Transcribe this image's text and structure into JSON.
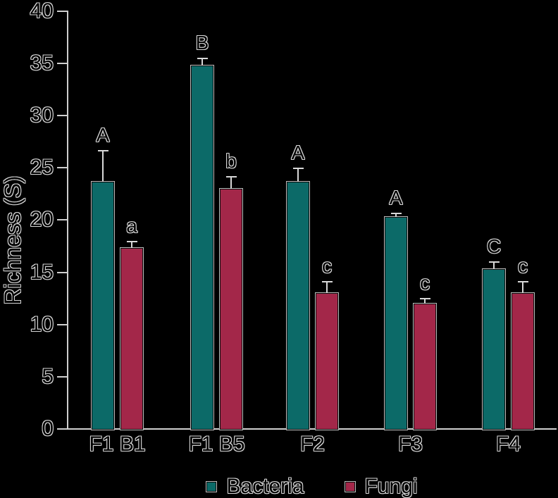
{
  "colors": {
    "background": "#000000",
    "axis": "#cfcfcf",
    "text_outline": "#d8d8d8",
    "bacteria": "#0c6a68",
    "fungi": "#a32749"
  },
  "chart_data": {
    "type": "bar",
    "title": "",
    "xlabel": "",
    "ylabel": "Richness (S)",
    "categories": [
      "F1 B1",
      "F1 B5",
      "F2",
      "F3",
      "F4"
    ],
    "series": [
      {
        "name": "Bacteria",
        "color": "#0c6a68",
        "values": [
          23.7,
          34.8,
          23.7,
          20.3,
          15.3
        ],
        "errors": [
          2.9,
          0.6,
          1.2,
          0.3,
          0.6
        ],
        "letters": [
          "A",
          "B",
          "A",
          "A",
          "C"
        ]
      },
      {
        "name": "Fungi",
        "color": "#a32749",
        "values": [
          17.3,
          23.0,
          13.0,
          12.0,
          13.0
        ],
        "errors": [
          0.6,
          1.1,
          1.0,
          0.4,
          1.0
        ],
        "letters": [
          "a",
          "b",
          "c",
          "c",
          "c"
        ]
      }
    ],
    "ylim": [
      0,
      40
    ],
    "yticks": [
      0,
      5,
      10,
      15,
      20,
      25,
      30,
      35,
      40
    ],
    "grid": false,
    "error_bars": true,
    "legend_position": "bottom"
  }
}
